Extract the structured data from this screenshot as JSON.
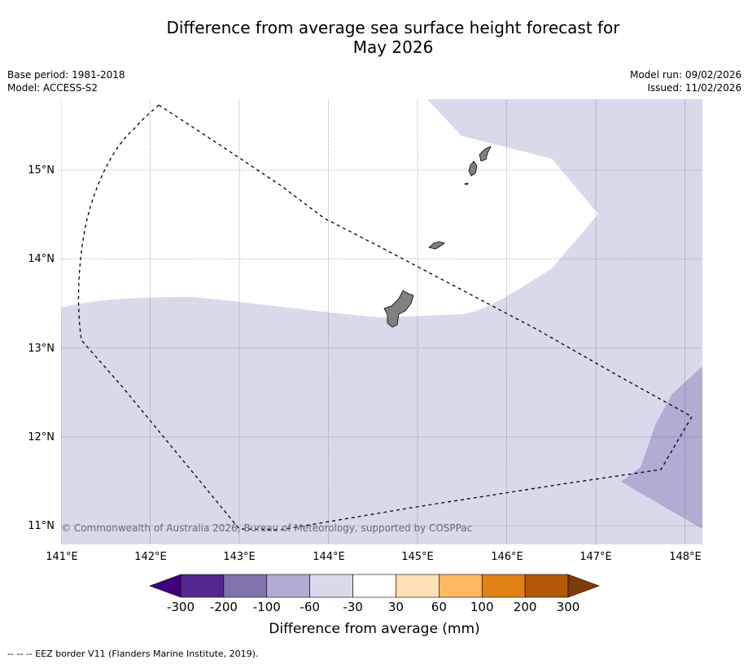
{
  "title_line1": "Difference from average sea surface height forecast for",
  "title_line2": "May 2026",
  "base_period": "Base period: 1981-2018",
  "model": "Model: ACCESS-S2",
  "model_run": "Model run: 09/02/2026",
  "issued": "Issued: 11/02/2026",
  "copyright": "© Commonwealth of Australia 2026, Bureau of Meteorology, supported by COSPPac",
  "footer": "--  --  -- EEZ border V11 (Flanders Marine Institute, 2019).",
  "lon_labels": [
    "141°E",
    "142°E",
    "143°E",
    "144°E",
    "145°E",
    "146°E",
    "147°E",
    "148°E"
  ],
  "lat_labels": [
    "15°N",
    "14°N",
    "13°N",
    "12°N",
    "11°N"
  ],
  "colorbar": {
    "label": "Difference from average (mm)",
    "ticks": [
      "-300",
      "-200",
      "-100",
      "-60",
      "-30",
      "30",
      "60",
      "100",
      "200",
      "300"
    ],
    "colors": [
      "#3f007d",
      "#54278f",
      "#8073ac",
      "#b2abd2",
      "#d8daeb",
      "#ffffff",
      "#fee0b6",
      "#fdb863",
      "#e08214",
      "#b35806",
      "#7f3b08"
    ]
  }
}
